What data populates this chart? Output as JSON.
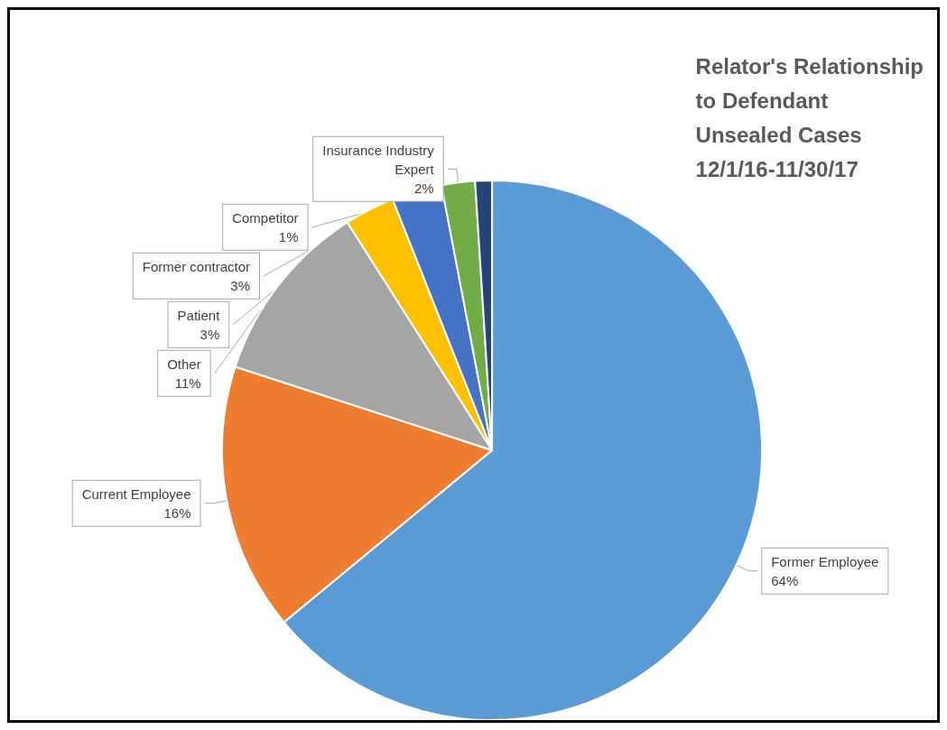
{
  "chart_data": {
    "type": "pie",
    "title": "Relator's Relationship\nto Defendant\nUnsealed Cases\n12/1/16-11/30/17",
    "categories": [
      "Former Employee",
      "Current Employee",
      "Other",
      "Patient",
      "Former contractor",
      "Insurance Industry\nExpert",
      "Competitor"
    ],
    "values": [
      64,
      16,
      11,
      3,
      3,
      2,
      1
    ],
    "colors": [
      "#5b9bd5",
      "#ed7d31",
      "#a5a5a5",
      "#ffc000",
      "#4472c4",
      "#70ad47",
      "#264478"
    ],
    "value_labels": [
      "64%",
      "16%",
      "11%",
      "3%",
      "3%",
      "2%",
      "1%"
    ],
    "legend": false
  }
}
